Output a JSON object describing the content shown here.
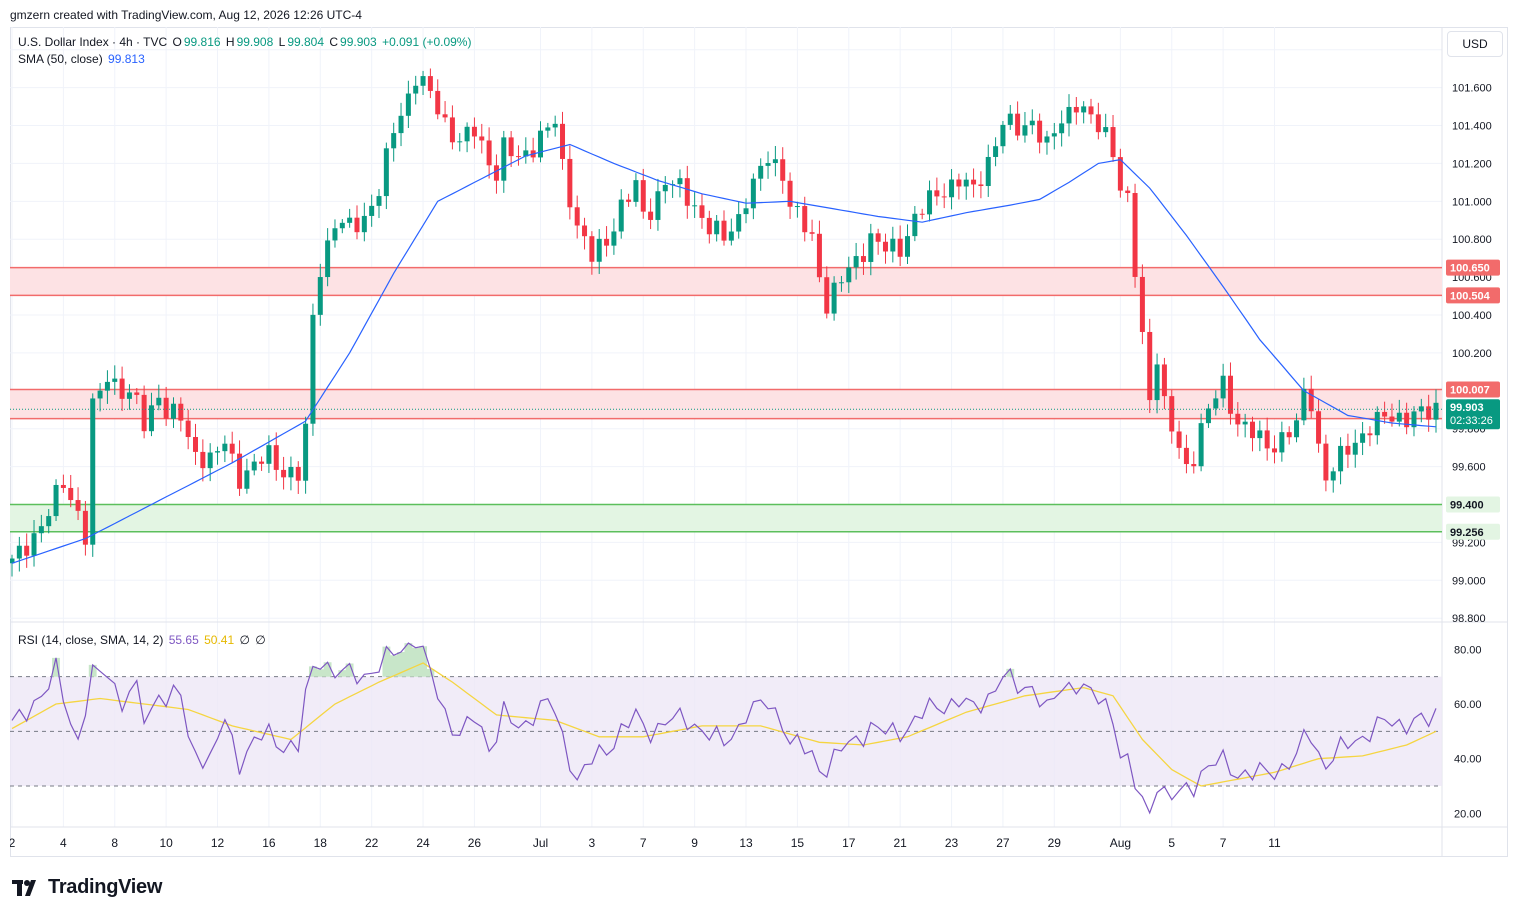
{
  "header_note": "gmzern created with TradingView.com, Aug 12, 2026 12:26 UTC-4",
  "legend": {
    "symbol": "U.S. Dollar Index · 4h · TVC",
    "o_label": "O",
    "o": "99.816",
    "h_label": "H",
    "h": "99.908",
    "l_label": "L",
    "l": "99.804",
    "c_label": "C",
    "c": "99.903",
    "change": "+0.091 (+0.09%)",
    "sma_label": "SMA (50, close)",
    "sma_value": "99.813",
    "rsi_label": "RSI (14, close, SMA, 14, 2)",
    "rsi_value": "55.65",
    "rsi_ma_value": "50.41",
    "rsi_extra1": "∅",
    "rsi_extra2": "∅"
  },
  "currency_button": "USD",
  "footer_brand": "TradingView",
  "colors": {
    "up": "#089981",
    "down": "#f23645",
    "sma": "#2962ff",
    "rsi": "#7e57c2",
    "rsi_ma": "#f5d541",
    "resistance_fill": "#fde2e4",
    "resistance_line": "#f26b6b",
    "support_fill": "#e3f5e3",
    "support_line": "#5cbf5c"
  },
  "chart_data": {
    "type": "candlestick",
    "price_axis": {
      "ticks": [
        98.8,
        99.0,
        99.2,
        99.4,
        99.6,
        99.8,
        100.0,
        100.2,
        100.4,
        100.6,
        100.8,
        101.0,
        101.2,
        101.4,
        101.6,
        101.8
      ],
      "ylim": [
        98.78,
        101.92
      ]
    },
    "x_ticks": [
      "2",
      "4",
      "8",
      "10",
      "12",
      "16",
      "18",
      "22",
      "24",
      "26",
      "Jul",
      "3",
      "7",
      "9",
      "13",
      "15",
      "17",
      "21",
      "23",
      "27",
      "29",
      "Aug",
      "5",
      "7",
      "11"
    ],
    "zones": [
      {
        "kind": "resistance",
        "top": 100.65,
        "bottom": 100.504,
        "top_label": "100.650",
        "bottom_label": "100.504"
      },
      {
        "kind": "resistance",
        "top": 100.007,
        "bottom": 99.853,
        "top_label": "100.007",
        "bottom_label": "99.853"
      },
      {
        "kind": "support",
        "top": 99.4,
        "bottom": 99.256,
        "top_label": "99.400",
        "bottom_label": "99.256"
      }
    ],
    "current_price": {
      "value": 99.903,
      "label": "99.903",
      "countdown": "02:33:26"
    },
    "close_path": [
      [
        0,
        99.09
      ],
      [
        3,
        99.24
      ],
      [
        5,
        99.35
      ],
      [
        7,
        99.52
      ],
      [
        9,
        99.36
      ],
      [
        10,
        99.23
      ],
      [
        11,
        99.9
      ],
      [
        13,
        100.08
      ],
      [
        15,
        100.01
      ],
      [
        17,
        99.93
      ],
      [
        18,
        99.82
      ],
      [
        19,
        99.9
      ],
      [
        20,
        100.0
      ],
      [
        21,
        99.88
      ],
      [
        23,
        99.86
      ],
      [
        24,
        99.74
      ],
      [
        25,
        99.68
      ],
      [
        27,
        99.63
      ],
      [
        29,
        99.72
      ],
      [
        31,
        99.55
      ],
      [
        33,
        99.6
      ],
      [
        35,
        99.66
      ],
      [
        37,
        99.58
      ],
      [
        39,
        99.55
      ],
      [
        40,
        99.78
      ],
      [
        41,
        100.39
      ],
      [
        42,
        100.66
      ],
      [
        44,
        100.88
      ],
      [
        46,
        100.86
      ],
      [
        48,
        100.92
      ],
      [
        50,
        101.05
      ],
      [
        51,
        101.21
      ],
      [
        52,
        101.38
      ],
      [
        54,
        101.56
      ],
      [
        55,
        101.66
      ],
      [
        57,
        101.56
      ],
      [
        59,
        101.42
      ],
      [
        61,
        101.31
      ],
      [
        63,
        101.37
      ],
      [
        65,
        101.22
      ],
      [
        66,
        101.15
      ],
      [
        67,
        101.28
      ],
      [
        69,
        101.22
      ],
      [
        71,
        101.3
      ],
      [
        73,
        101.38
      ],
      [
        74,
        101.41
      ],
      [
        75,
        101.18
      ],
      [
        77,
        100.88
      ],
      [
        79,
        100.7
      ],
      [
        81,
        100.79
      ],
      [
        83,
        100.98
      ],
      [
        85,
        101.07
      ],
      [
        86,
        100.92
      ],
      [
        87,
        100.96
      ],
      [
        89,
        101.11
      ],
      [
        91,
        101.06
      ],
      [
        93,
        100.98
      ],
      [
        95,
        100.86
      ],
      [
        97,
        100.8
      ],
      [
        99,
        100.92
      ],
      [
        100,
        101.02
      ],
      [
        101,
        101.08
      ],
      [
        103,
        101.23
      ],
      [
        105,
        101.16
      ],
      [
        106,
        100.98
      ],
      [
        107,
        100.92
      ],
      [
        109,
        100.8
      ],
      [
        110,
        100.62
      ],
      [
        111,
        100.46
      ],
      [
        113,
        100.58
      ],
      [
        115,
        100.69
      ],
      [
        117,
        100.81
      ],
      [
        119,
        100.74
      ],
      [
        121,
        100.76
      ],
      [
        123,
        100.91
      ],
      [
        125,
        101.0
      ],
      [
        127,
        101.07
      ],
      [
        129,
        101.11
      ],
      [
        131,
        101.05
      ],
      [
        133,
        101.22
      ],
      [
        135,
        101.41
      ],
      [
        137,
        101.38
      ],
      [
        139,
        101.43
      ],
      [
        141,
        101.28
      ],
      [
        143,
        101.43
      ],
      [
        145,
        101.53
      ],
      [
        147,
        101.42
      ],
      [
        149,
        101.36
      ],
      [
        150,
        101.28
      ],
      [
        151,
        101.08
      ],
      [
        152,
        100.99
      ],
      [
        153,
        100.62
      ],
      [
        154,
        100.28
      ],
      [
        155,
        99.96
      ],
      [
        156,
        100.2
      ],
      [
        157,
        99.93
      ],
      [
        158,
        99.79
      ],
      [
        160,
        99.58
      ],
      [
        161,
        99.67
      ],
      [
        162,
        99.82
      ],
      [
        164,
        99.97
      ],
      [
        165,
        100.02
      ],
      [
        166,
        99.92
      ],
      [
        167,
        99.85
      ],
      [
        169,
        99.78
      ],
      [
        171,
        99.69
      ],
      [
        173,
        99.76
      ],
      [
        175,
        99.82
      ],
      [
        176,
        99.96
      ],
      [
        177,
        99.94
      ],
      [
        178,
        99.71
      ],
      [
        179,
        99.55
      ],
      [
        181,
        99.64
      ],
      [
        183,
        99.73
      ],
      [
        185,
        99.82
      ],
      [
        187,
        99.85
      ],
      [
        189,
        99.86
      ],
      [
        191,
        99.88
      ],
      [
        193,
        99.87
      ],
      [
        194,
        99.9
      ]
    ],
    "sma_path": [
      [
        0,
        99.09
      ],
      [
        10,
        99.22
      ],
      [
        20,
        99.42
      ],
      [
        30,
        99.62
      ],
      [
        40,
        99.84
      ],
      [
        46,
        100.2
      ],
      [
        52,
        100.62
      ],
      [
        58,
        101.0
      ],
      [
        64,
        101.12
      ],
      [
        70,
        101.24
      ],
      [
        76,
        101.3
      ],
      [
        82,
        101.2
      ],
      [
        88,
        101.11
      ],
      [
        94,
        101.04
      ],
      [
        100,
        100.99
      ],
      [
        106,
        101.0
      ],
      [
        112,
        100.96
      ],
      [
        118,
        100.92
      ],
      [
        124,
        100.89
      ],
      [
        130,
        100.94
      ],
      [
        136,
        100.98
      ],
      [
        140,
        101.01
      ],
      [
        144,
        101.1
      ],
      [
        148,
        101.2
      ],
      [
        151,
        101.22
      ],
      [
        155,
        101.07
      ],
      [
        160,
        100.82
      ],
      [
        165,
        100.55
      ],
      [
        170,
        100.27
      ],
      [
        176,
        100.0
      ],
      [
        182,
        99.87
      ],
      [
        188,
        99.83
      ],
      [
        194,
        99.81
      ]
    ],
    "rsi": {
      "ylim": [
        15,
        90
      ],
      "levels": [
        30,
        50,
        70
      ],
      "ticks": [
        20,
        40,
        60,
        80
      ],
      "path": [
        [
          0,
          52
        ],
        [
          3,
          61
        ],
        [
          5,
          66
        ],
        [
          6,
          72
        ],
        [
          8,
          54
        ],
        [
          9,
          47
        ],
        [
          11,
          70
        ],
        [
          13,
          72
        ],
        [
          15,
          61
        ],
        [
          17,
          65
        ],
        [
          18,
          55
        ],
        [
          19,
          57
        ],
        [
          20,
          66
        ],
        [
          21,
          61
        ],
        [
          23,
          64
        ],
        [
          24,
          47
        ],
        [
          25,
          43
        ],
        [
          27,
          39
        ],
        [
          29,
          54
        ],
        [
          31,
          39
        ],
        [
          33,
          46
        ],
        [
          35,
          49
        ],
        [
          37,
          45
        ],
        [
          39,
          44
        ],
        [
          40,
          62
        ],
        [
          41,
          73
        ],
        [
          42,
          77
        ],
        [
          44,
          71
        ],
        [
          46,
          71
        ],
        [
          48,
          71
        ],
        [
          50,
          73
        ],
        [
          51,
          76
        ],
        [
          52,
          79
        ],
        [
          54,
          82
        ],
        [
          55,
          84
        ],
        [
          57,
          71
        ],
        [
          59,
          57
        ],
        [
          61,
          48
        ],
        [
          63,
          55
        ],
        [
          65,
          45
        ],
        [
          66,
          49
        ],
        [
          67,
          57
        ],
        [
          69,
          50
        ],
        [
          71,
          57
        ],
        [
          73,
          61
        ],
        [
          74,
          56
        ],
        [
          75,
          47
        ],
        [
          77,
          33
        ],
        [
          79,
          39
        ],
        [
          81,
          43
        ],
        [
          83,
          51
        ],
        [
          85,
          55
        ],
        [
          86,
          51
        ],
        [
          87,
          50
        ],
        [
          89,
          54
        ],
        [
          91,
          54
        ],
        [
          93,
          53
        ],
        [
          95,
          49
        ],
        [
          97,
          45
        ],
        [
          99,
          52
        ],
        [
          100,
          57
        ],
        [
          101,
          58
        ],
        [
          103,
          60
        ],
        [
          105,
          54
        ],
        [
          106,
          46
        ],
        [
          107,
          45
        ],
        [
          109,
          41
        ],
        [
          110,
          37
        ],
        [
          111,
          37
        ],
        [
          113,
          43
        ],
        [
          115,
          47
        ],
        [
          117,
          52
        ],
        [
          119,
          49
        ],
        [
          121,
          50
        ],
        [
          123,
          54
        ],
        [
          125,
          58
        ],
        [
          127,
          60
        ],
        [
          129,
          61
        ],
        [
          131,
          58
        ],
        [
          133,
          63
        ],
        [
          135,
          70
        ],
        [
          137,
          66
        ],
        [
          139,
          67
        ],
        [
          141,
          57
        ],
        [
          143,
          66
        ],
        [
          145,
          68
        ],
        [
          147,
          63
        ],
        [
          149,
          60
        ],
        [
          150,
          56
        ],
        [
          151,
          42
        ],
        [
          152,
          38
        ],
        [
          153,
          30
        ],
        [
          154,
          24
        ],
        [
          155,
          21
        ],
        [
          156,
          32
        ],
        [
          157,
          27
        ],
        [
          158,
          25
        ],
        [
          160,
          29
        ],
        [
          161,
          31
        ],
        [
          162,
          35
        ],
        [
          164,
          38
        ],
        [
          165,
          39
        ],
        [
          166,
          37
        ],
        [
          167,
          35
        ],
        [
          169,
          34
        ],
        [
          171,
          35
        ],
        [
          173,
          37
        ],
        [
          175,
          40
        ],
        [
          176,
          47
        ],
        [
          177,
          49
        ],
        [
          178,
          42
        ],
        [
          179,
          38
        ],
        [
          181,
          43
        ],
        [
          183,
          47
        ],
        [
          185,
          50
        ],
        [
          187,
          53
        ],
        [
          189,
          53
        ],
        [
          191,
          54
        ],
        [
          193,
          53
        ],
        [
          194,
          56
        ]
      ],
      "ma_path": [
        [
          0,
          51
        ],
        [
          6,
          60
        ],
        [
          12,
          62
        ],
        [
          18,
          60
        ],
        [
          24,
          58
        ],
        [
          30,
          52
        ],
        [
          38,
          47
        ],
        [
          44,
          60
        ],
        [
          50,
          68
        ],
        [
          56,
          75
        ],
        [
          60,
          68
        ],
        [
          66,
          56
        ],
        [
          74,
          54
        ],
        [
          80,
          48
        ],
        [
          86,
          48
        ],
        [
          94,
          52
        ],
        [
          102,
          52
        ],
        [
          110,
          46
        ],
        [
          116,
          45
        ],
        [
          122,
          48
        ],
        [
          130,
          57
        ],
        [
          138,
          63
        ],
        [
          146,
          66
        ],
        [
          150,
          63
        ],
        [
          154,
          47
        ],
        [
          158,
          36
        ],
        [
          162,
          30
        ],
        [
          166,
          32
        ],
        [
          172,
          35
        ],
        [
          178,
          40
        ],
        [
          184,
          41
        ],
        [
          190,
          45
        ],
        [
          194,
          50
        ]
      ]
    }
  }
}
